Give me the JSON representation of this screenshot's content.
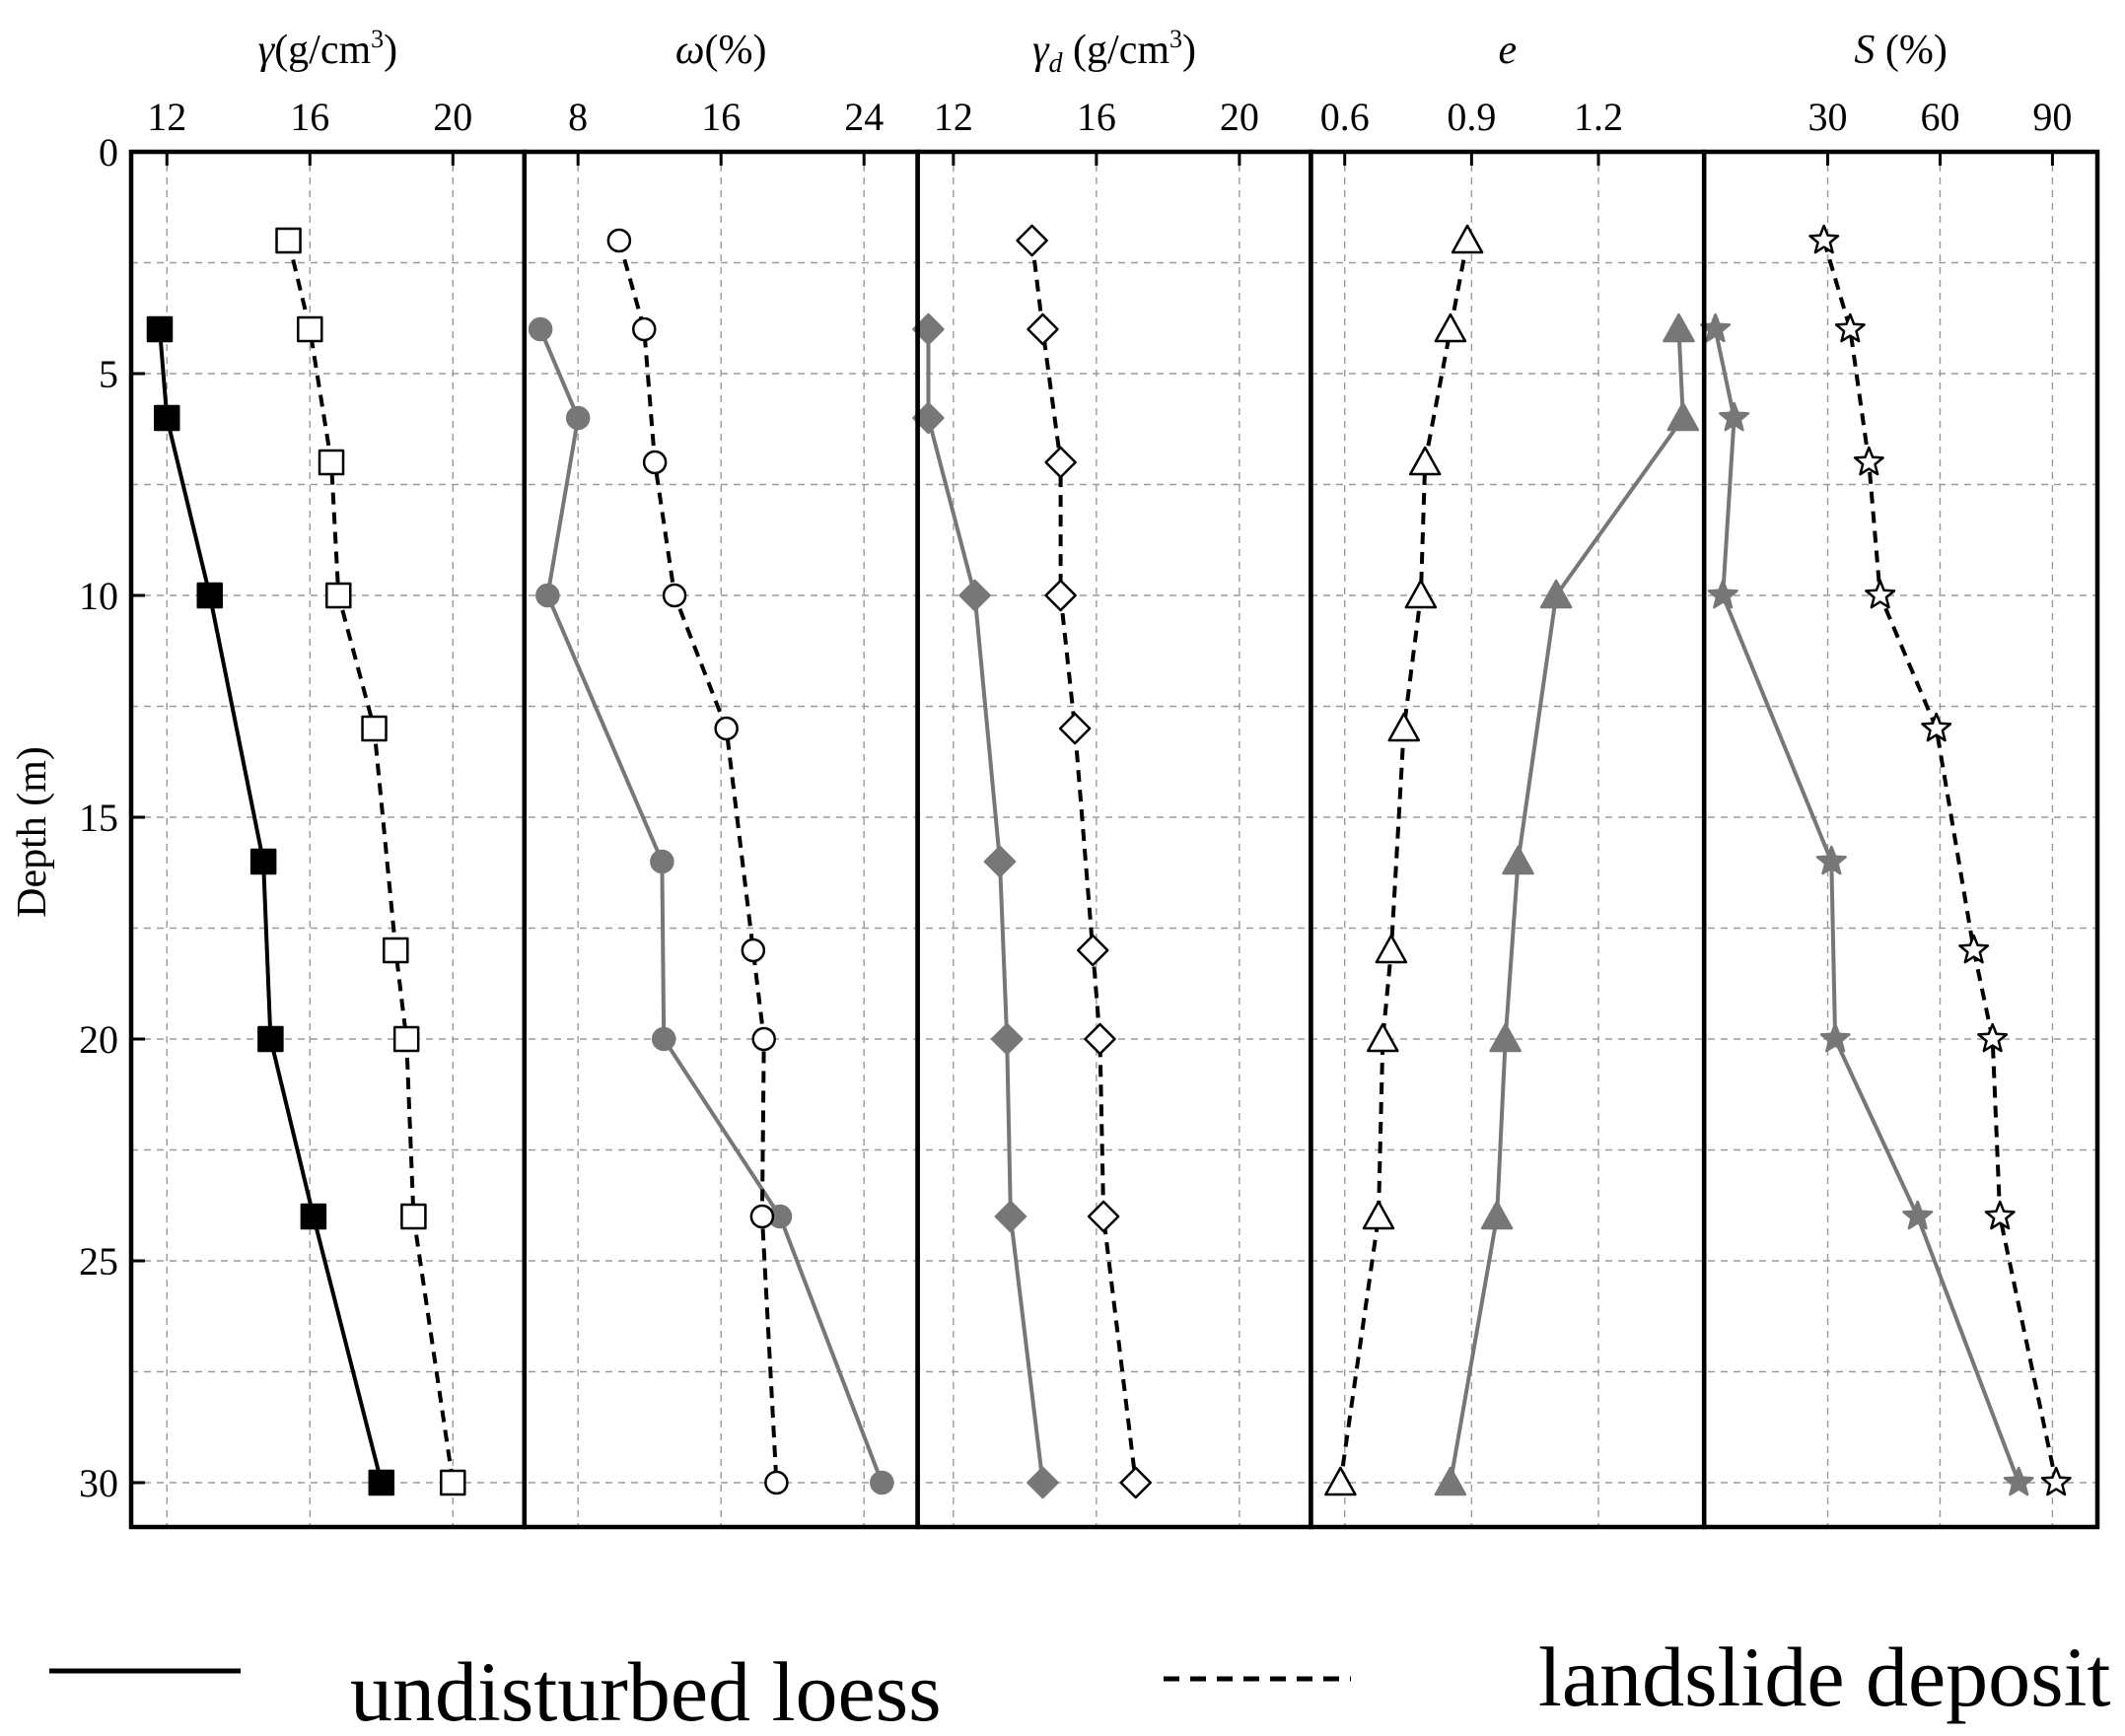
{
  "chart_data": {
    "type": "line",
    "ylabel": "Depth (m)",
    "y_ticks": [
      "0",
      "5",
      "10",
      "15",
      "20",
      "25",
      "30"
    ],
    "ylim": [
      0,
      31
    ],
    "y_inverted": true,
    "grid": true,
    "legend": {
      "placement": "bottom",
      "entries": [
        {
          "label": "undisturbed loess",
          "style": "solid"
        },
        {
          "label": "landslide deposit",
          "style": "dashed"
        }
      ]
    },
    "depths_undisturbed": [
      4,
      6,
      10,
      16,
      20,
      24,
      30
    ],
    "depths_landslide": [
      2,
      4,
      7,
      10,
      13,
      18,
      20,
      24,
      30
    ],
    "panels": [
      {
        "title_sym": "γ",
        "title_sub": "",
        "title_unit": "(g/cm",
        "title_sup": "3",
        "title_close": ")",
        "title_italic": true,
        "x_ticks": [
          "12",
          "16",
          "20"
        ],
        "xlim": [
          11,
          22
        ],
        "tick_values": [
          12,
          16,
          20
        ],
        "undisturbed": {
          "values": [
            11.8,
            12.0,
            13.2,
            14.7,
            14.9,
            16.1,
            18.0
          ],
          "marker": "square",
          "fill": "#000000",
          "line": "#000000"
        },
        "landslide": {
          "values": [
            15.4,
            16.0,
            16.6,
            16.8,
            17.8,
            18.4,
            18.7,
            18.9,
            20.0
          ],
          "marker": "square",
          "fill": "#ffffff",
          "line": "#000000"
        }
      },
      {
        "title_sym": "ω",
        "title_sub": "",
        "title_unit": "(%)",
        "title_sup": "",
        "title_close": "",
        "title_italic": true,
        "x_ticks": [
          "8",
          "16",
          "24"
        ],
        "xlim": [
          5,
          27
        ],
        "tick_values": [
          8,
          16,
          24
        ],
        "undisturbed": {
          "values": [
            5.9,
            8.0,
            6.3,
            12.7,
            12.8,
            19.3,
            25.0
          ],
          "marker": "circle",
          "fill": "#777777",
          "line": "#777777"
        },
        "landslide": {
          "values": [
            10.3,
            11.7,
            12.3,
            13.4,
            16.3,
            17.8,
            18.4,
            18.3,
            19.1
          ],
          "marker": "circle",
          "fill": "#ffffff",
          "line": "#000000"
        }
      },
      {
        "title_sym": "γ",
        "title_sub": "d",
        "title_unit": " (g/cm",
        "title_sup": "3",
        "title_close": ")",
        "title_italic": true,
        "x_ticks": [
          "12",
          "16",
          "20"
        ],
        "xlim": [
          11,
          22
        ],
        "tick_values": [
          12,
          16,
          20
        ],
        "undisturbed": {
          "values": [
            11.3,
            11.3,
            12.6,
            13.3,
            13.5,
            13.6,
            14.5
          ],
          "marker": "diamond",
          "fill": "#777777",
          "line": "#777777"
        },
        "landslide": {
          "values": [
            14.2,
            14.5,
            15.0,
            15.0,
            15.4,
            15.9,
            16.1,
            16.2,
            17.1
          ],
          "marker": "diamond",
          "fill": "#ffffff",
          "line": "#000000"
        }
      },
      {
        "title_sym": "e",
        "title_sub": "",
        "title_unit": "",
        "title_sup": "",
        "title_close": "",
        "title_italic": true,
        "x_ticks": [
          "0.6",
          "0.9",
          "1.2"
        ],
        "xlim": [
          0.52,
          1.45
        ],
        "tick_values": [
          0.6,
          0.9,
          1.2
        ],
        "undisturbed": {
          "values": [
            1.39,
            1.4,
            1.1,
            1.01,
            0.98,
            0.96,
            0.85
          ],
          "marker": "triangle",
          "fill": "#777777",
          "line": "#777777"
        },
        "landslide": {
          "values": [
            0.89,
            0.85,
            0.79,
            0.78,
            0.74,
            0.71,
            0.69,
            0.68,
            0.59
          ],
          "marker": "triangle",
          "fill": "#ffffff",
          "line": "#000000"
        }
      },
      {
        "title_sym": "S",
        "title_sub": "",
        "title_unit": " (%)",
        "title_sup": "",
        "title_close": "",
        "title_italic": true,
        "x_ticks": [
          "30",
          "60",
          "90"
        ],
        "xlim": [
          -3,
          102
        ],
        "tick_values": [
          30,
          60,
          90
        ],
        "undisturbed": {
          "values": [
            0,
            5,
            2,
            31,
            32,
            54,
            81
          ],
          "marker": "star",
          "fill": "#777777",
          "line": "#777777"
        },
        "landslide": {
          "values": [
            29,
            36,
            41,
            44,
            59,
            69,
            74,
            76,
            91
          ],
          "marker": "star",
          "fill": "#ffffff",
          "line": "#000000"
        }
      }
    ]
  }
}
